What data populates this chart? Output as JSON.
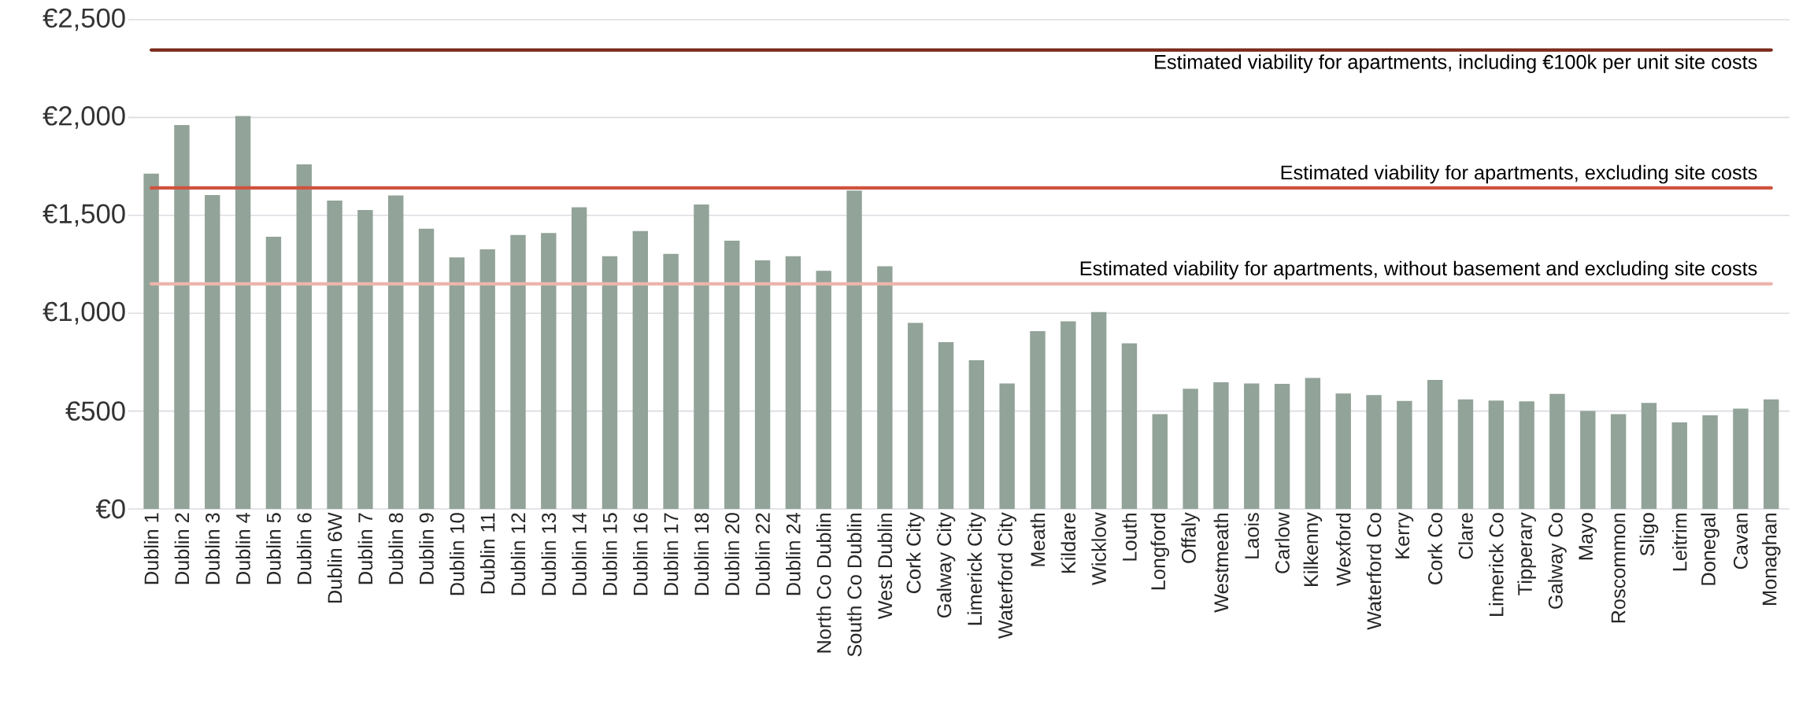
{
  "chart_data": {
    "type": "bar",
    "categories": [
      "Dublin 1",
      "Dublin 2",
      "Dublin 3",
      "Dublin 4",
      "Dublin 5",
      "Dublin 6",
      "Dublin 6W",
      "Dublin 7",
      "Dublin 8",
      "Dublin 9",
      "Dublin 10",
      "Dublin 11",
      "Dublin 12",
      "Dublin 13",
      "Dublin 14",
      "Dublin 15",
      "Dublin 16",
      "Dublin 17",
      "Dublin 18",
      "Dublin 20",
      "Dublin 22",
      "Dublin 24",
      "North Co Dublin",
      "South Co Dublin",
      "West Dublin",
      "Cork City",
      "Galway City",
      "Limerick City",
      "Waterford City",
      "Meath",
      "Kildare",
      "Wicklow",
      "Louth",
      "Longford",
      "Offaly",
      "Westmeath",
      "Laois",
      "Carlow",
      "Kilkenny",
      "Wexford",
      "Waterford Co",
      "Kerry",
      "Cork Co",
      "Clare",
      "Limerick Co",
      "Tipperary",
      "Galway Co",
      "Mayo",
      "Roscommon",
      "Sligo",
      "Leitrim",
      "Donegal",
      "Cavan",
      "Monaghan"
    ],
    "values": [
      1713,
      1961,
      1604,
      2008,
      1391,
      1760,
      1576,
      1527,
      1602,
      1432,
      1285,
      1326,
      1400,
      1410,
      1541,
      1291,
      1420,
      1303,
      1555,
      1371,
      1270,
      1291,
      1217,
      1627,
      1240,
      951,
      852,
      760,
      641,
      908,
      959,
      1006,
      846,
      484,
      614,
      647,
      641,
      639,
      669,
      590,
      582,
      552,
      659,
      560,
      554,
      550,
      588,
      500,
      484,
      542,
      442,
      478,
      512,
      560
    ],
    "color": "#92a399",
    "ylim": [
      0,
      2500
    ],
    "yticks": [
      {
        "value": 0,
        "label": "€0"
      },
      {
        "value": 500,
        "label": "€500"
      },
      {
        "value": 1000,
        "label": "€1,000"
      },
      {
        "value": 1500,
        "label": "€1,500"
      },
      {
        "value": 2000,
        "label": "€2,000"
      },
      {
        "value": 2500,
        "label": "€2,500"
      }
    ],
    "grid": "y",
    "ref_lines": [
      {
        "axis": "y",
        "value": 2345,
        "label": "Estimated viability for apartments, including €100k per unit site costs",
        "color": "#7b2a1c"
      },
      {
        "axis": "y",
        "value": 1640,
        "label": "Estimated viability for apartments, excluding site costs",
        "color": "#d0533e"
      },
      {
        "axis": "y",
        "value": 1150,
        "label": "Estimated viability for apartments, without basement and excluding site costs",
        "color": "#ebb5ab"
      }
    ]
  }
}
